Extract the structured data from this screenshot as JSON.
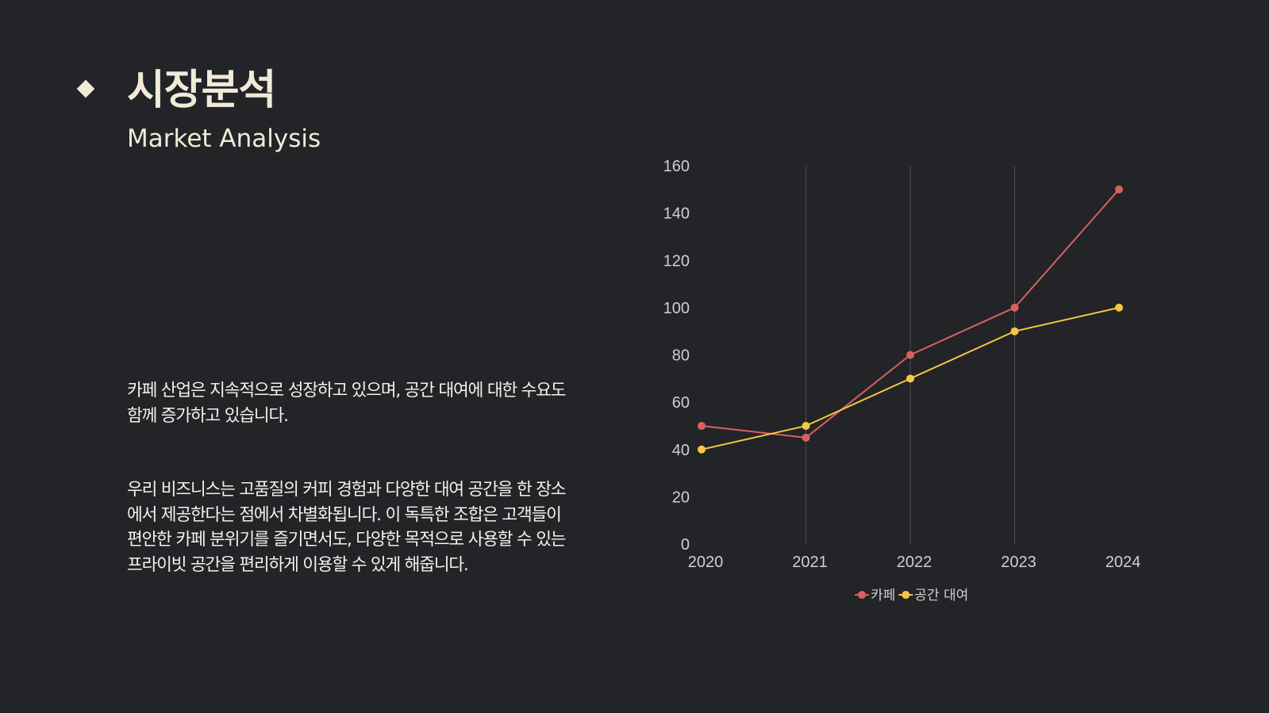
{
  "slide": {
    "title": "시장분석",
    "subtitle": "Market Analysis",
    "paragraphs": [
      "카페 산업은 지속적으로 성장하고 있으며, 공간 대여에 대한 수요도 함께 증가하고 있습니다.",
      "우리 비즈니스는 고품질의 커피 경험과 다양한 대여 공간을 한 장소에서 제공한다는 점에서 차별화됩니다. 이 독특한 조합은 고객들이 편안한 카페 분위기를 즐기면서도, 다양한 목적으로 사용할 수 있는 프라이빗 공간을 편리하게 이용할 수 있게 해줍니다."
    ]
  },
  "chart_data": {
    "type": "line",
    "categories": [
      "2020",
      "2021",
      "2022",
      "2023",
      "2024"
    ],
    "series": [
      {
        "name": "카페",
        "values": [
          50,
          45,
          80,
          100,
          150
        ],
        "color": "#d9605f"
      },
      {
        "name": "공간 대여",
        "values": [
          40,
          50,
          70,
          90,
          100
        ],
        "color": "#f5c842"
      }
    ],
    "ylim": [
      0,
      160
    ],
    "yticks": [
      0,
      20,
      40,
      60,
      80,
      100,
      120,
      140,
      160
    ],
    "grid": "vertical",
    "legend": "bottom-center",
    "colors": {
      "background": "#222427",
      "text": "#f2ead9",
      "grid": "#4a4c50"
    }
  }
}
